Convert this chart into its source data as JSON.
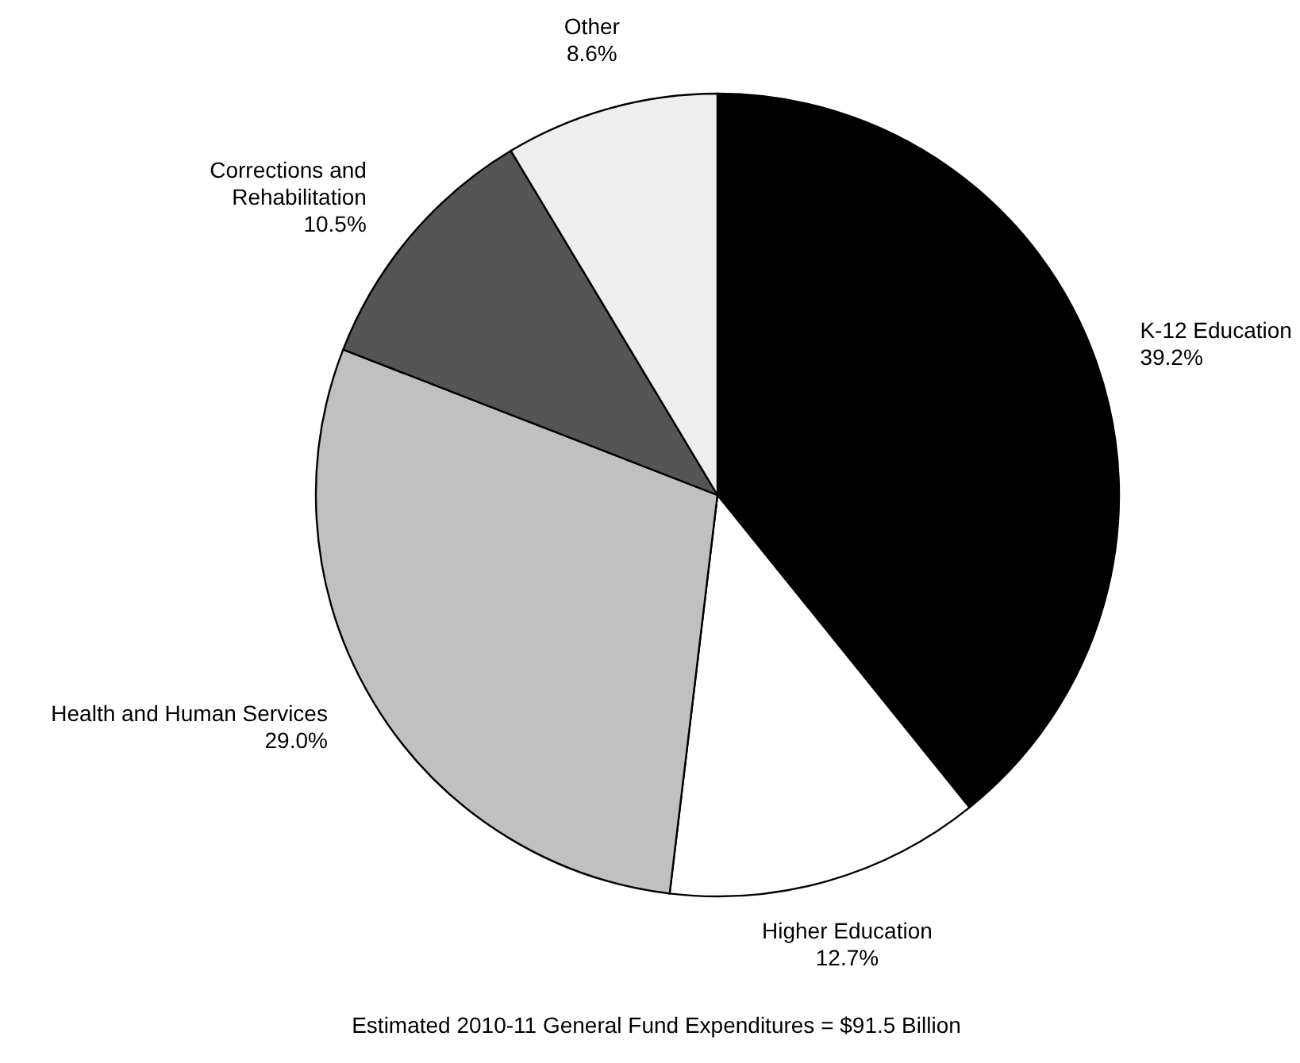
{
  "chart_data": {
    "type": "pie",
    "categories": [
      "K-12 Education",
      "Higher Education",
      "Health and Human Services",
      "Corrections and Rehabilitation",
      "Other"
    ],
    "values": [
      39.2,
      12.7,
      29.0,
      10.5,
      8.6
    ],
    "value_labels": [
      "39.2%",
      "12.7%",
      "29.0%",
      "10.5%",
      "8.6%"
    ],
    "colors": [
      "#000000",
      "#ffffff",
      "#c0c0c0",
      "#555555",
      "#eeeeee"
    ],
    "annotations": [
      "Estimated 2010-11 General Fund Expenditures = $91.5 Billion"
    ]
  }
}
